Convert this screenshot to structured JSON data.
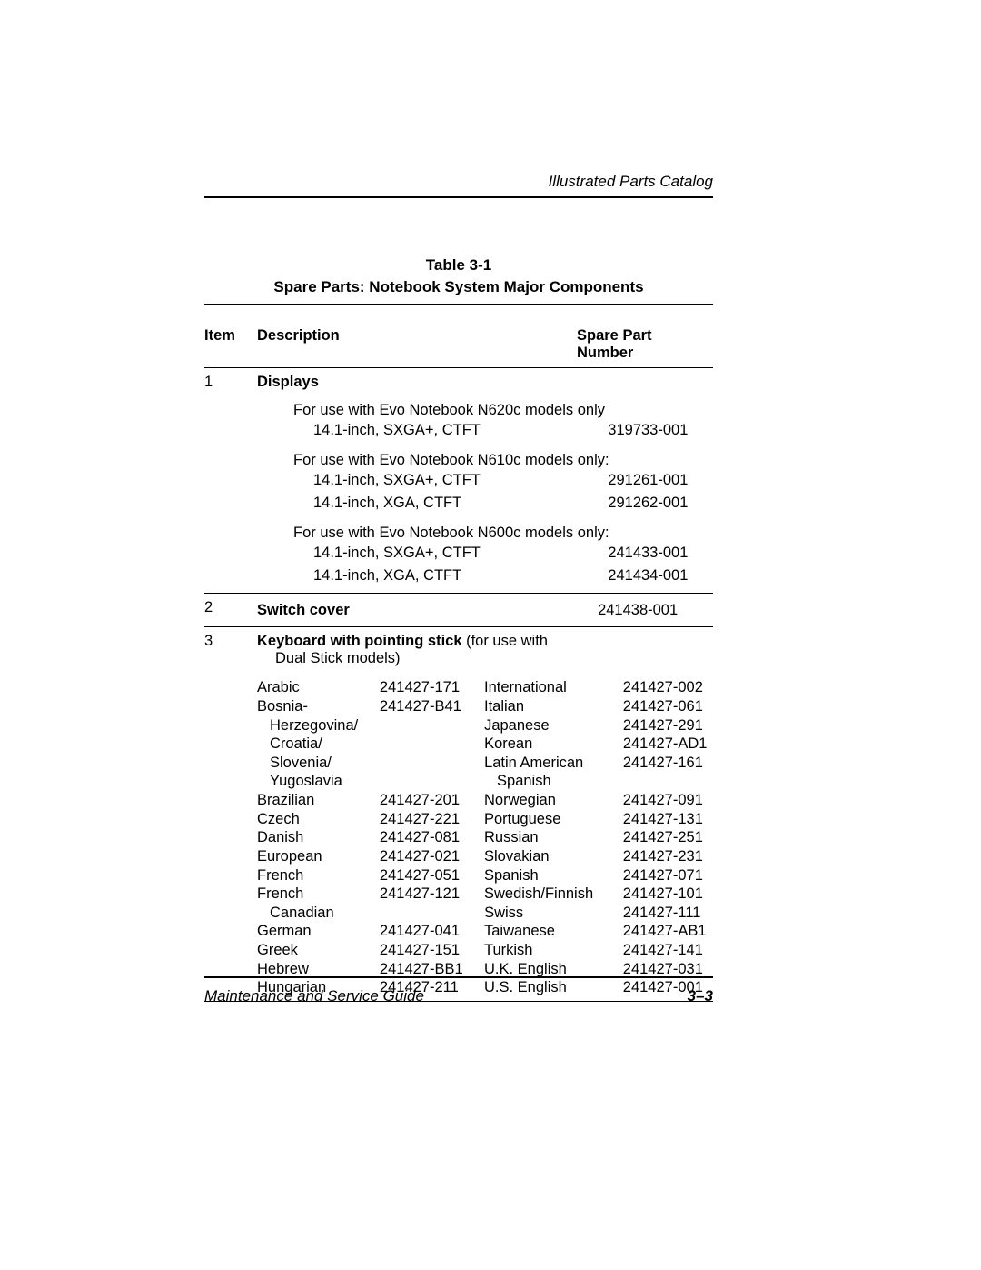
{
  "header": {
    "section_title": "Illustrated Parts Catalog"
  },
  "table": {
    "caption_line1": "Table 3-1",
    "caption_line2": "Spare Parts: Notebook System Major Components",
    "columns": {
      "item": "Item",
      "description": "Description",
      "spare_part_l1": "Spare Part",
      "spare_part_l2": "Number"
    },
    "item1": {
      "num": "1",
      "title": "Displays",
      "g1": {
        "intro": "For use with Evo Notebook N620c models only",
        "r1": {
          "desc": "14.1-inch, SXGA+, CTFT",
          "pn": "319733-001"
        }
      },
      "g2": {
        "intro": "For use with Evo Notebook N610c models only:",
        "r1": {
          "desc": "14.1-inch, SXGA+, CTFT",
          "pn": "291261-001"
        },
        "r2": {
          "desc": "14.1-inch, XGA, CTFT",
          "pn": "291262-001"
        }
      },
      "g3": {
        "intro": "For use with Evo Notebook N600c models only:",
        "r1": {
          "desc": "14.1-inch, SXGA+, CTFT",
          "pn": "241433-001"
        },
        "r2": {
          "desc": "14.1-inch, XGA, CTFT",
          "pn": "241434-001"
        }
      }
    },
    "item2": {
      "num": "2",
      "title": "Switch cover",
      "pn": "241438-001"
    },
    "item3": {
      "num": "3",
      "title_bold": "Keyboard with pointing stick",
      "title_rest": " (for use with",
      "title_line2": "Dual Stick models)",
      "left": [
        {
          "name": "Arabic",
          "pn": "241427-171"
        },
        {
          "name": "Bosnia-",
          "pn": "241427-B41"
        },
        {
          "name": "Herzegovina/",
          "indent": true
        },
        {
          "name": "Croatia/",
          "indent": true
        },
        {
          "name": "Slovenia/",
          "indent": true
        },
        {
          "name": "Yugoslavia",
          "indent": true
        },
        {
          "name": "Brazilian",
          "pn": "241427-201"
        },
        {
          "name": "Czech",
          "pn": "241427-221"
        },
        {
          "name": "Danish",
          "pn": "241427-081"
        },
        {
          "name": "European",
          "pn": "241427-021"
        },
        {
          "name": "French",
          "pn": "241427-051"
        },
        {
          "name": "French",
          "pn": "241427-121"
        },
        {
          "name": "Canadian",
          "indent": true
        },
        {
          "name": "German",
          "pn": "241427-041"
        },
        {
          "name": "Greek",
          "pn": "241427-151"
        },
        {
          "name": "Hebrew",
          "pn": "241427-BB1"
        },
        {
          "name": "Hungarian",
          "pn": "241427-211"
        }
      ],
      "right": [
        {
          "name": "International",
          "pn": "241427-002"
        },
        {
          "name": "Italian",
          "pn": "241427-061"
        },
        {
          "name": "Japanese",
          "pn": "241427-291"
        },
        {
          "name": "Korean",
          "pn": "241427-AD1"
        },
        {
          "name": "Latin American",
          "pn": "241427-161"
        },
        {
          "name": "Spanish",
          "indent": true
        },
        {
          "name": "Norwegian",
          "pn": "241427-091"
        },
        {
          "name": "Portuguese",
          "pn": "241427-131"
        },
        {
          "name": "Russian",
          "pn": "241427-251"
        },
        {
          "name": "Slovakian",
          "pn": "241427-231"
        },
        {
          "name": "Spanish",
          "pn": "241427-071"
        },
        {
          "name": "Swedish/Finnish",
          "pn": "241427-101"
        },
        {
          "name": "Swiss",
          "pn": "241427-111"
        },
        {
          "name": "Taiwanese",
          "pn": "241427-AB1"
        },
        {
          "name": "Turkish",
          "pn": "241427-141"
        },
        {
          "name": "U.K. English",
          "pn": "241427-031"
        },
        {
          "name": "U.S. English",
          "pn": "241427-001"
        }
      ]
    }
  },
  "footer": {
    "doc_title": "Maintenance and Service Guide",
    "page_number": "3–3"
  }
}
